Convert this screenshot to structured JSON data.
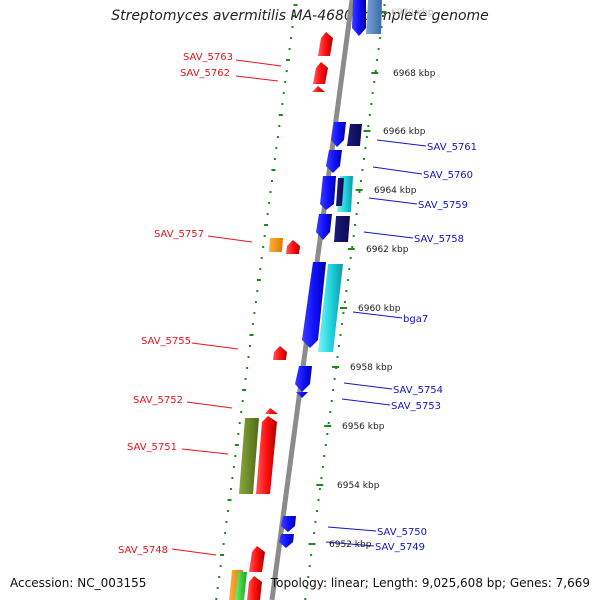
{
  "title": "Streptomyces avermitilis MA-4680, complete genome",
  "footer": {
    "accession": "Accession: NC_003155",
    "summary": "Topology: linear; Length: 9,025,608 bp; Genes: 7,669"
  },
  "ticks": [
    {
      "label": "6970 kbp"
    },
    {
      "label": "6968 kbp"
    },
    {
      "label": "6966 kbp"
    },
    {
      "label": "6964 kbp"
    },
    {
      "label": "6962 kbp"
    },
    {
      "label": "6960 kbp"
    },
    {
      "label": "6958 kbp"
    },
    {
      "label": "6956 kbp"
    },
    {
      "label": "6954 kbp"
    },
    {
      "label": "6952 kbp"
    }
  ],
  "genes_left": [
    {
      "name": "SAV_5763"
    },
    {
      "name": "SAV_5762"
    },
    {
      "name": "SAV_5757"
    },
    {
      "name": "SAV_5755"
    },
    {
      "name": "SAV_5752"
    },
    {
      "name": "SAV_5751"
    },
    {
      "name": "SAV_5748"
    }
  ],
  "genes_right": [
    {
      "name": "SAV_5761"
    },
    {
      "name": "SAV_5760"
    },
    {
      "name": "SAV_5759"
    },
    {
      "name": "SAV_5758"
    },
    {
      "name": "bga7"
    },
    {
      "name": "SAV_5754"
    },
    {
      "name": "SAV_5753"
    },
    {
      "name": "SAV_5750"
    },
    {
      "name": "SAV_5749"
    }
  ],
  "colors": {
    "left_label": "#e8141b",
    "right_label": "#1414c8",
    "backbone": "#8c8c8c",
    "dots": "#1e8a1e"
  }
}
